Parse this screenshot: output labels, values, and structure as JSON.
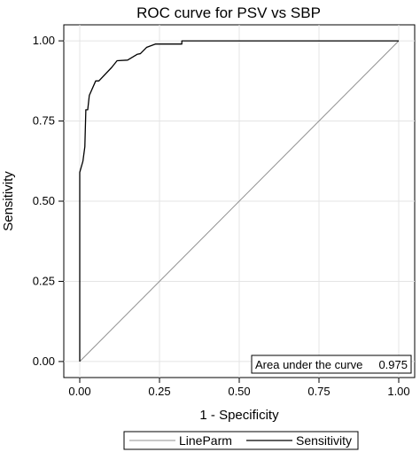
{
  "chart_data": {
    "type": "line",
    "title": "ROC curve for PSV vs SBP",
    "xlabel": "1 - Specificity",
    "ylabel": "Sensitivity",
    "xlim": [
      -0.05,
      1.05
    ],
    "ylim": [
      -0.05,
      1.05
    ],
    "xticks": [
      0,
      0.25,
      0.5,
      0.75,
      1
    ],
    "yticks": [
      0,
      0.25,
      0.5,
      0.75,
      1
    ],
    "xtick_labels": [
      "0.00",
      "0.25",
      "0.50",
      "0.75",
      "1.00"
    ],
    "ytick_labels": [
      "0.00",
      "0.25",
      "0.50",
      "0.75",
      "1.00"
    ],
    "grid": true,
    "legend_position": "bottom",
    "annotation": {
      "label": "Area under the curve",
      "value": "0.975"
    },
    "series": [
      {
        "name": "LineParm",
        "color": "#909090",
        "x": [
          0,
          1
        ],
        "y": [
          0,
          1
        ]
      },
      {
        "name": "Sensitivity",
        "color": "#000000",
        "x": [
          0,
          0,
          0.01,
          0.016,
          0.019,
          0.019,
          0.025,
          0.03,
          0.05,
          0.06,
          0.1,
          0.117,
          0.15,
          0.18,
          0.19,
          0.21,
          0.237,
          0.32,
          0.32,
          0.5,
          0.75,
          1.0
        ],
        "y": [
          0,
          0.59,
          0.625,
          0.67,
          0.78,
          0.785,
          0.785,
          0.83,
          0.875,
          0.875,
          0.917,
          0.938,
          0.94,
          0.958,
          0.96,
          0.98,
          0.99,
          0.99,
          1.0,
          1.0,
          1.0,
          1.0
        ]
      }
    ]
  }
}
